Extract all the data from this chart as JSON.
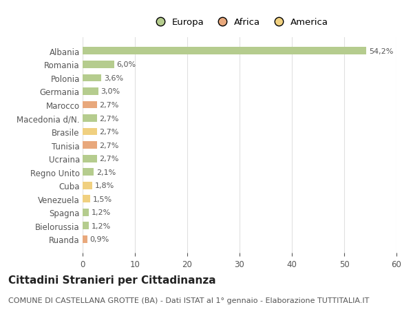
{
  "categories": [
    "Albania",
    "Romania",
    "Polonia",
    "Germania",
    "Marocco",
    "Macedonia d/N.",
    "Brasile",
    "Tunisia",
    "Ucraina",
    "Regno Unito",
    "Cuba",
    "Venezuela",
    "Spagna",
    "Bielorussia",
    "Ruanda"
  ],
  "values": [
    54.2,
    6.0,
    3.6,
    3.0,
    2.7,
    2.7,
    2.7,
    2.7,
    2.7,
    2.1,
    1.8,
    1.5,
    1.2,
    1.2,
    0.9
  ],
  "labels": [
    "54,2%",
    "6,0%",
    "3,6%",
    "3,0%",
    "2,7%",
    "2,7%",
    "2,7%",
    "2,7%",
    "2,7%",
    "2,1%",
    "1,8%",
    "1,5%",
    "1,2%",
    "1,2%",
    "0,9%"
  ],
  "colors": [
    "#b5cc8e",
    "#b5cc8e",
    "#b5cc8e",
    "#b5cc8e",
    "#e8a87c",
    "#b5cc8e",
    "#f0d080",
    "#e8a87c",
    "#b5cc8e",
    "#b5cc8e",
    "#f0d080",
    "#f0d080",
    "#b5cc8e",
    "#b5cc8e",
    "#e8a87c"
  ],
  "legend_labels": [
    "Europa",
    "Africa",
    "America"
  ],
  "legend_colors": [
    "#b5cc8e",
    "#e8a87c",
    "#f0d080"
  ],
  "title": "Cittadini Stranieri per Cittadinanza",
  "subtitle": "COMUNE DI CASTELLANA GROTTE (BA) - Dati ISTAT al 1° gennaio - Elaborazione TUTTITALIA.IT",
  "xlim": [
    0,
    60
  ],
  "xticks": [
    0,
    10,
    20,
    30,
    40,
    50,
    60
  ],
  "background_color": "#ffffff",
  "grid_color": "#e0e0e0",
  "bar_height": 0.55,
  "title_fontsize": 11,
  "subtitle_fontsize": 8,
  "label_fontsize": 8,
  "tick_fontsize": 8.5,
  "legend_fontsize": 9.5,
  "text_color": "#555555"
}
